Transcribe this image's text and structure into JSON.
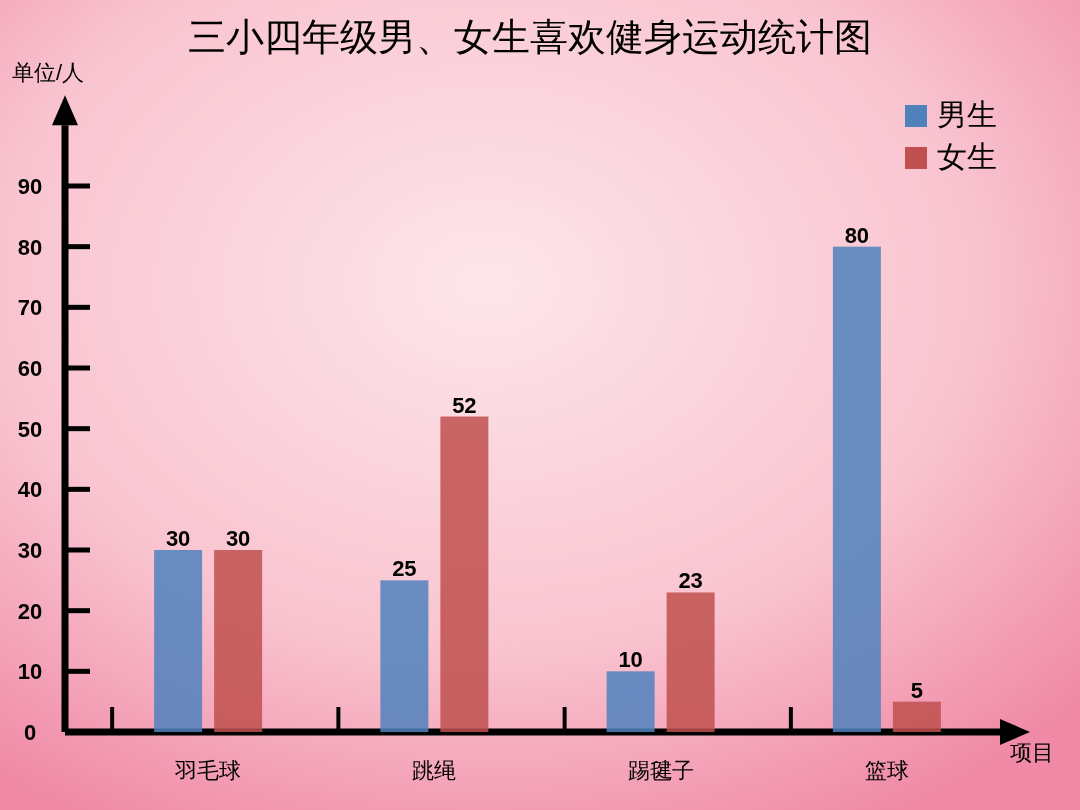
{
  "chart_data": {
    "type": "bar",
    "title": "三小四年级男、女生喜欢健身运动统计图",
    "ylabel": "单位/人",
    "xlabel": "项目",
    "categories": [
      "羽毛球",
      "跳绳",
      "踢毽子",
      "篮球"
    ],
    "series": [
      {
        "name": "男生",
        "color": "#4f81bd",
        "values": [
          30,
          25,
          10,
          80
        ]
      },
      {
        "name": "女生",
        "color": "#c0504d",
        "values": [
          30,
          52,
          23,
          5
        ]
      }
    ],
    "ylim": [
      0,
      100
    ],
    "yticks": [
      0,
      10,
      20,
      30,
      40,
      50,
      60,
      70,
      80,
      90
    ],
    "data_labels": true,
    "legend": "top right",
    "grid": false
  }
}
